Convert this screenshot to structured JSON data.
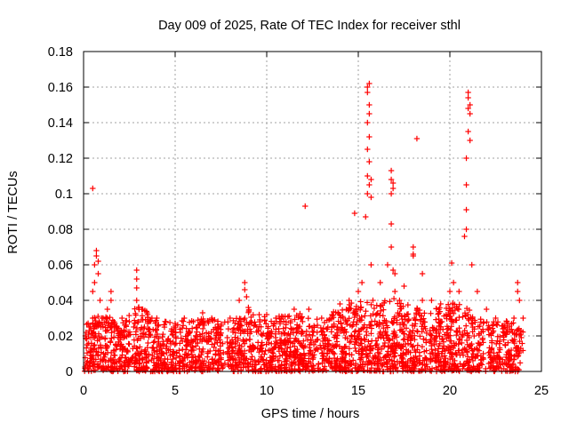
{
  "chart_data": {
    "type": "scatter",
    "title": "Day 009 of 2025, Rate Of TEC Index for receiver sthl",
    "xlabel": "GPS time / hours",
    "ylabel": "ROTI / TECUs",
    "xlim": [
      0,
      25
    ],
    "ylim": [
      0,
      0.18
    ],
    "x_ticks": [
      0,
      5,
      10,
      15,
      20,
      25
    ],
    "x_tick_labels": [
      "0",
      "5",
      "10",
      "15",
      "20",
      "25"
    ],
    "y_ticks": [
      0,
      0.02,
      0.04,
      0.06,
      0.08,
      0.1,
      0.12,
      0.14,
      0.16,
      0.18
    ],
    "y_tick_labels": [
      "0",
      "0.02",
      "0.04",
      "0.06",
      "0.08",
      "0.1",
      "0.12",
      "0.14",
      "0.16",
      "0.18"
    ],
    "grid": true,
    "marker": "+",
    "color": "#ff0000",
    "series": [
      {
        "name": "ROTI",
        "points": [
          [
            0.1,
            0.02
          ],
          [
            0.2,
            0.015
          ],
          [
            0.3,
            0.025
          ],
          [
            0.4,
            0.012
          ],
          [
            0.5,
            0.103
          ],
          [
            0.5,
            0.03
          ],
          [
            0.5,
            0.045
          ],
          [
            0.6,
            0.06
          ],
          [
            0.6,
            0.05
          ],
          [
            0.7,
            0.065
          ],
          [
            0.7,
            0.068
          ],
          [
            0.8,
            0.062
          ],
          [
            0.8,
            0.055
          ],
          [
            0.9,
            0.04
          ],
          [
            1.0,
            0.03
          ],
          [
            1.3,
            0.035
          ],
          [
            1.5,
            0.045
          ],
          [
            1.5,
            0.04
          ],
          [
            1.8,
            0.025
          ],
          [
            2.1,
            0.03
          ],
          [
            2.5,
            0.028
          ],
          [
            2.9,
            0.057
          ],
          [
            2.9,
            0.052
          ],
          [
            2.9,
            0.047
          ],
          [
            2.9,
            0.04
          ],
          [
            3.0,
            0.036
          ],
          [
            3.5,
            0.032
          ],
          [
            4.0,
            0.03
          ],
          [
            4.5,
            0.028
          ],
          [
            5.0,
            0.027
          ],
          [
            5.5,
            0.03
          ],
          [
            6.0,
            0.028
          ],
          [
            6.5,
            0.033
          ],
          [
            7.0,
            0.03
          ],
          [
            8.0,
            0.03
          ],
          [
            8.5,
            0.04
          ],
          [
            8.8,
            0.05
          ],
          [
            8.8,
            0.046
          ],
          [
            8.9,
            0.042
          ],
          [
            9.0,
            0.036
          ],
          [
            10.0,
            0.032
          ],
          [
            10.5,
            0.03
          ],
          [
            11.0,
            0.031
          ],
          [
            11.5,
            0.035
          ],
          [
            12.1,
            0.093
          ],
          [
            12.3,
            0.035
          ],
          [
            13.0,
            0.03
          ],
          [
            14.0,
            0.038
          ],
          [
            14.5,
            0.04
          ],
          [
            14.8,
            0.089
          ],
          [
            15.0,
            0.045
          ],
          [
            15.2,
            0.05
          ],
          [
            15.4,
            0.087
          ],
          [
            15.5,
            0.1
          ],
          [
            15.5,
            0.11
          ],
          [
            15.5,
            0.125
          ],
          [
            15.5,
            0.14
          ],
          [
            15.5,
            0.16
          ],
          [
            15.5,
            0.157
          ],
          [
            15.6,
            0.162
          ],
          [
            15.6,
            0.15
          ],
          [
            15.6,
            0.145
          ],
          [
            15.6,
            0.132
          ],
          [
            15.6,
            0.118
          ],
          [
            15.6,
            0.105
          ],
          [
            15.7,
            0.098
          ],
          [
            15.7,
            0.108
          ],
          [
            15.7,
            0.06
          ],
          [
            15.8,
            0.04
          ],
          [
            16.2,
            0.05
          ],
          [
            16.6,
            0.06
          ],
          [
            16.8,
            0.113
          ],
          [
            16.8,
            0.108
          ],
          [
            16.8,
            0.1
          ],
          [
            16.8,
            0.083
          ],
          [
            16.8,
            0.07
          ],
          [
            16.9,
            0.106
          ],
          [
            16.9,
            0.103
          ],
          [
            16.9,
            0.057
          ],
          [
            17.0,
            0.055
          ],
          [
            17.0,
            0.045
          ],
          [
            17.5,
            0.048
          ],
          [
            18.0,
            0.07
          ],
          [
            18.0,
            0.066
          ],
          [
            18.0,
            0.065
          ],
          [
            18.2,
            0.131
          ],
          [
            18.5,
            0.055
          ],
          [
            18.5,
            0.04
          ],
          [
            19.0,
            0.04
          ],
          [
            19.5,
            0.038
          ],
          [
            20.0,
            0.045
          ],
          [
            20.1,
            0.061
          ],
          [
            20.2,
            0.05
          ],
          [
            20.5,
            0.045
          ],
          [
            20.8,
            0.076
          ],
          [
            20.9,
            0.08
          ],
          [
            20.9,
            0.091
          ],
          [
            20.9,
            0.105
          ],
          [
            20.9,
            0.12
          ],
          [
            21.0,
            0.135
          ],
          [
            21.0,
            0.148
          ],
          [
            21.0,
            0.154
          ],
          [
            21.0,
            0.157
          ],
          [
            21.1,
            0.15
          ],
          [
            21.1,
            0.145
          ],
          [
            21.1,
            0.13
          ],
          [
            21.2,
            0.06
          ],
          [
            21.5,
            0.045
          ],
          [
            22.0,
            0.035
          ],
          [
            22.5,
            0.03
          ],
          [
            23.0,
            0.025
          ],
          [
            23.5,
            0.03
          ],
          [
            23.7,
            0.05
          ],
          [
            23.7,
            0.045
          ],
          [
            23.8,
            0.04
          ],
          [
            24.0,
            0.03
          ]
        ]
      }
    ]
  }
}
